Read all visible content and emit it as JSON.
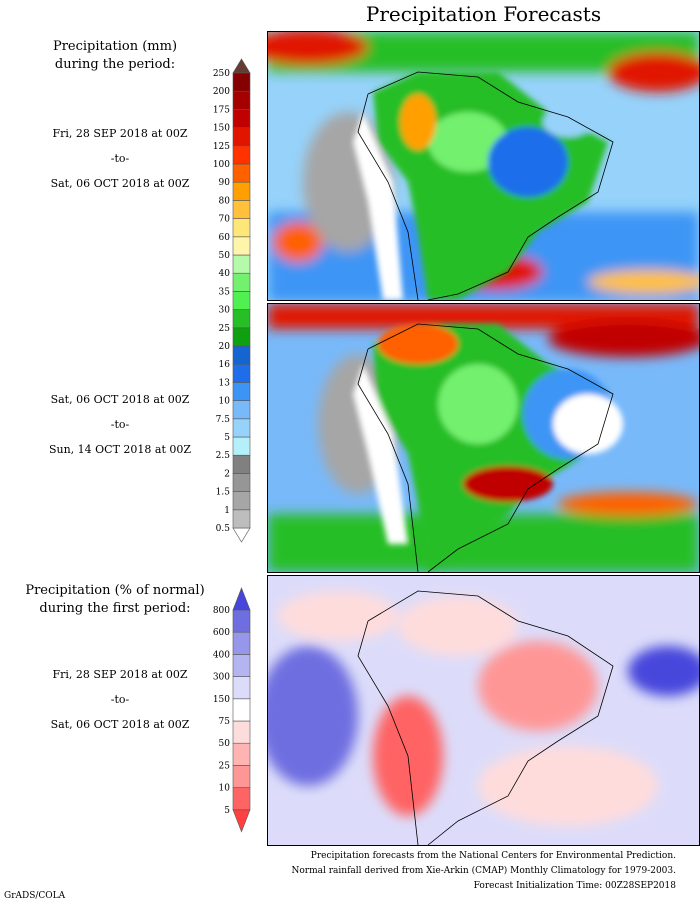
{
  "title": "Precipitation Forecasts",
  "left": {
    "hdr1_line1": "Precipitation (mm)",
    "hdr1_line2": "during the period:",
    "p1_from": "Fri, 28 SEP 2018 at 00Z",
    "p1_to": "-to-",
    "p1_end": "Sat, 06 OCT 2018 at 00Z",
    "p2_from": "Sat, 06 OCT 2018 at 00Z",
    "p2_to": "-to-",
    "p2_end": "Sun, 14 OCT 2018 at 00Z",
    "hdr2_line1": "Precipitation (% of normal)",
    "hdr2_line2": "during the first period:",
    "p3_from": "Fri, 28 SEP 2018 at 00Z",
    "p3_to": "-to-",
    "p3_end": "Sat, 06 OCT 2018 at 00Z"
  },
  "footer": {
    "line1": "Precipitation forecasts from the National Centers for Environmental Prediction.",
    "line2": "Normal rainfall derived from Xie-Arkin (CMAP) Monthly Climatology for 1979-2003.",
    "line3": "Forecast Initialization Time: 00Z28SEP2018",
    "credit": "GrADS/COLA"
  },
  "chart_data": [
    {
      "type": "heatmap",
      "title": "Precipitation (mm)",
      "colorbar_labels": [
        "0.5",
        "1",
        "1.5",
        "2",
        "2.5",
        "5",
        "7.5",
        "10",
        "13",
        "16",
        "20",
        "25",
        "30",
        "35",
        "40",
        "50",
        "60",
        "70",
        "80",
        "90",
        "100",
        "125",
        "150",
        "175",
        "200",
        "250"
      ],
      "colors": [
        "#ffffff",
        "#bdbdbd",
        "#a6a6a6",
        "#969696",
        "#808080",
        "#b4f0fa",
        "#96d2fa",
        "#78b9fa",
        "#3c95f5",
        "#1e6eeb",
        "#1464d2",
        "#0fa00f",
        "#28be28",
        "#50f050",
        "#73f06e",
        "#b4faaa",
        "#fff5aa",
        "#ffe678",
        "#ffc03c",
        "#ffa000",
        "#ff6000",
        "#ff3200",
        "#e11400",
        "#c00000",
        "#a50000",
        "#870000",
        "#643c32"
      ]
    },
    {
      "type": "heatmap",
      "title": "Precipitation (% of normal)",
      "colorbar_labels": [
        "5",
        "10",
        "25",
        "50",
        "75",
        "150",
        "300",
        "400",
        "600",
        "800"
      ],
      "colors": [
        "#ff4040",
        "#ff6464",
        "#ff9696",
        "#ffb4b4",
        "#ffdcdc",
        "#ffffff",
        "#dcdcfa",
        "#b4b4f0",
        "#9696eb",
        "#6e6ee1",
        "#4646dc"
      ]
    }
  ]
}
